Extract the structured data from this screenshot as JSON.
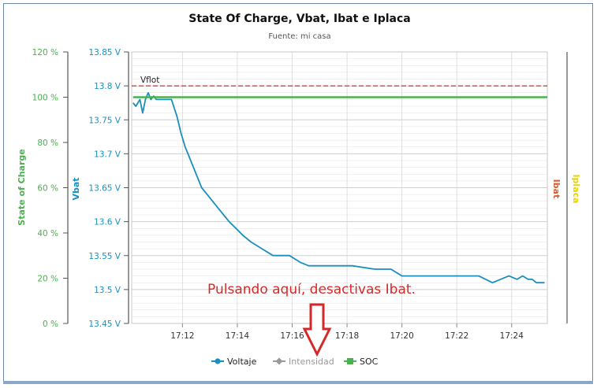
{
  "colors": {
    "soc": "#4caf50",
    "voltage": "#1a8fbd",
    "ibat": "#e05a2a",
    "iplaca": "#e8d200",
    "vflot": "#c0392b",
    "annotation": "#d62828",
    "legend_disabled": "#999999"
  },
  "chart_data": {
    "type": "line",
    "title": "State Of Charge, Vbat, Ibat e Iplaca",
    "subtitle": "Fuente: mi casa",
    "x_ticks": [
      "17:12",
      "17:14",
      "17:16",
      "17:18",
      "17:20",
      "17:22",
      "17:24"
    ],
    "x_tick_minutes": [
      12,
      14,
      16,
      18,
      20,
      22,
      24
    ],
    "xlim_minutes": [
      10.15,
      25.3
    ],
    "axes": {
      "soc": {
        "title": "State of Charge",
        "ticks": [
          "0 %",
          "20 %",
          "40 %",
          "60 %",
          "80 %",
          "100 %",
          "120 %"
        ],
        "range": [
          0,
          120
        ]
      },
      "vbat": {
        "title": "Vbat",
        "ticks": [
          "13.45 V",
          "13.5 V",
          "13.55 V",
          "13.6 V",
          "13.65 V",
          "13.7 V",
          "13.75 V",
          "13.8 V",
          "13.85 V"
        ],
        "range": [
          13.45,
          13.85
        ]
      },
      "ibat": {
        "title": "Ibat"
      },
      "iplaca": {
        "title": "Iplaca"
      }
    },
    "plot_lines": [
      {
        "label": "Vflot",
        "axis": "vbat",
        "value": 13.8
      }
    ],
    "series": [
      {
        "name": "Voltaje",
        "axis": "vbat",
        "x_minutes": [
          10.2,
          10.3,
          10.45,
          10.55,
          10.65,
          10.75,
          10.85,
          10.95,
          11.05,
          11.6,
          11.8,
          11.95,
          12.1,
          12.3,
          12.5,
          12.7,
          12.9,
          13.1,
          13.3,
          13.5,
          13.7,
          13.95,
          14.2,
          14.5,
          14.9,
          15.3,
          15.9,
          16.3,
          16.6,
          17.0,
          17.5,
          18.2,
          19.0,
          19.6,
          20.0,
          20.8,
          21.5,
          22.2,
          22.8,
          23.3,
          23.9,
          24.2,
          24.4,
          24.6,
          24.75,
          24.9,
          25.2
        ],
        "values": [
          13.775,
          13.77,
          13.78,
          13.76,
          13.78,
          13.79,
          13.78,
          13.785,
          13.78,
          13.78,
          13.755,
          13.73,
          13.71,
          13.69,
          13.67,
          13.65,
          13.64,
          13.63,
          13.62,
          13.61,
          13.6,
          13.59,
          13.58,
          13.57,
          13.56,
          13.55,
          13.55,
          13.54,
          13.535,
          13.535,
          13.535,
          13.535,
          13.53,
          13.53,
          13.52,
          13.52,
          13.52,
          13.52,
          13.52,
          13.51,
          13.52,
          13.515,
          13.52,
          13.515,
          13.515,
          13.51,
          13.51
        ],
        "enabled": true
      },
      {
        "name": "Intensidad",
        "axis": "ibat",
        "values": [],
        "enabled": false
      },
      {
        "name": "SOC",
        "axis": "soc",
        "x_minutes": [
          10.2,
          25.3
        ],
        "values": [
          100,
          100
        ],
        "enabled": true
      }
    ],
    "legend": {
      "position": "bottom-center",
      "items": [
        {
          "label": "Voltaje",
          "marker": "circle"
        },
        {
          "label": "Intensidad",
          "marker": "diamond"
        },
        {
          "label": "SOC",
          "marker": "square"
        }
      ]
    },
    "grid": true
  },
  "annotation": {
    "text": "Pulsando aquí, desactivas Ibat.",
    "icon": "down-arrow-icon"
  }
}
